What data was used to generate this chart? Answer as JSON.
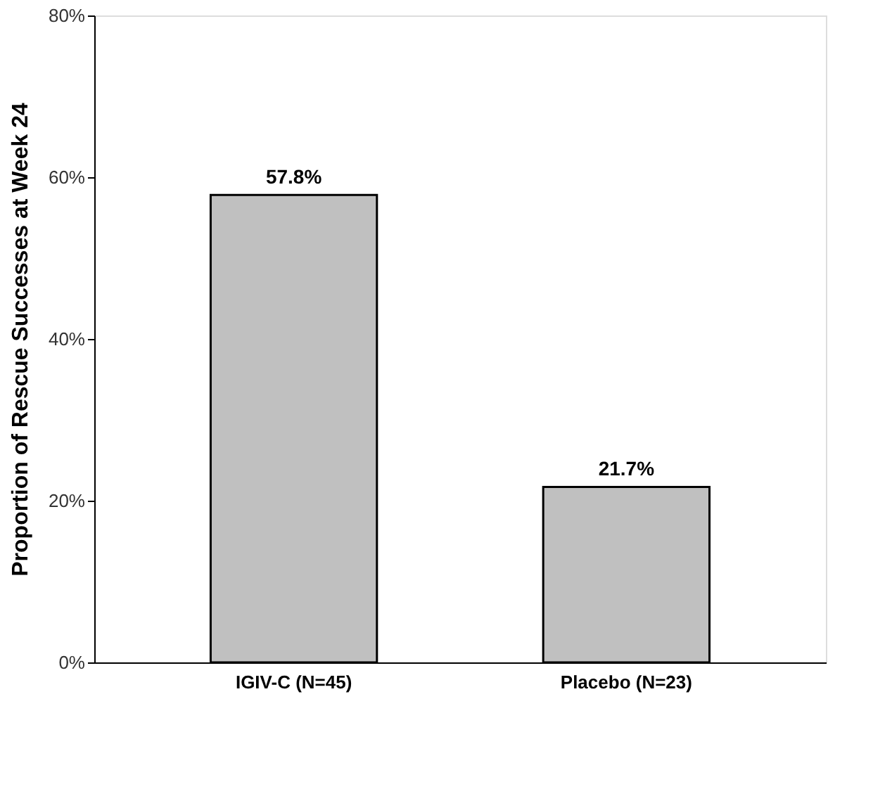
{
  "chart_data": {
    "type": "bar",
    "ylabel": "Proportion of Rescue Successes at Week 24",
    "categories": [
      "IGIV-C (N=45)",
      "Placebo (N=23)"
    ],
    "values": [
      57.8,
      21.7
    ],
    "value_labels": [
      "57.8%",
      "21.7%"
    ],
    "color": "#c0c0c0",
    "ylim": [
      0,
      80
    ],
    "yticks": [
      {
        "value": 0,
        "label": "0%"
      },
      {
        "value": 20,
        "label": "20%"
      },
      {
        "value": 40,
        "label": "40%"
      },
      {
        "value": 60,
        "label": "60%"
      },
      {
        "value": 80,
        "label": "80%"
      }
    ],
    "grid": false
  }
}
